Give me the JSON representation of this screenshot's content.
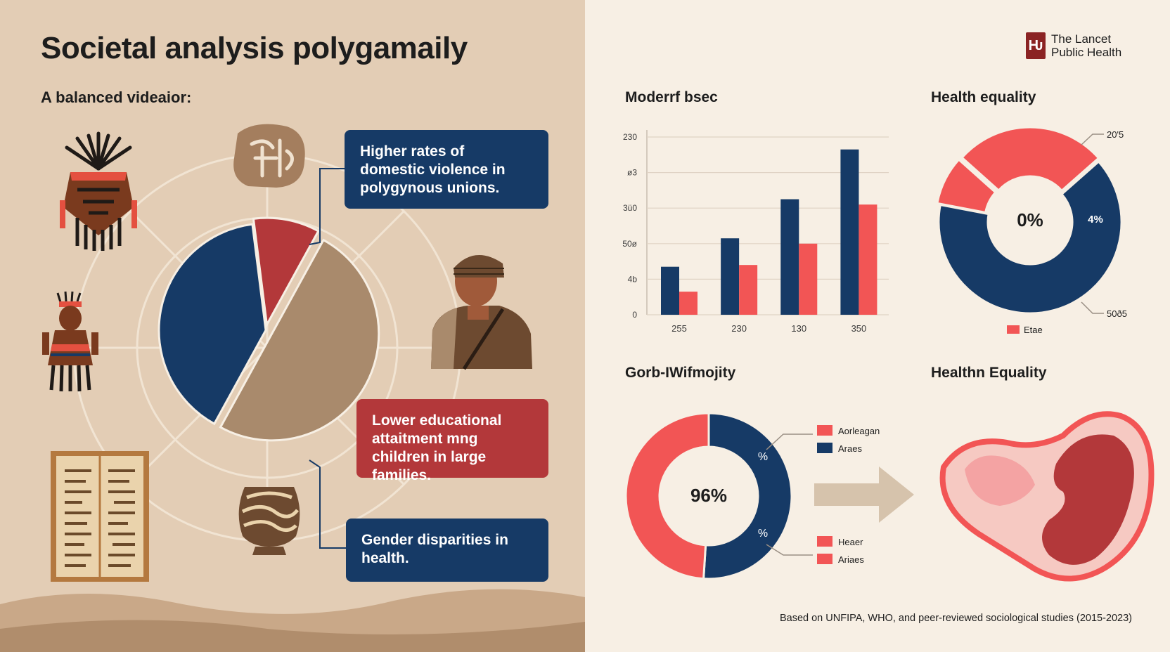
{
  "header": {
    "title": "Societal analysis polygamaily",
    "subtitle": "A balanced videaior:"
  },
  "callouts": [
    "Higher rates of domestic violence in polygynous unions.",
    "Lower educational attaitment mng children in large families.",
    "Gender disparities in health."
  ],
  "logo": {
    "mark": "Ƕ",
    "line1": "The Lancet",
    "line2": "Public Health"
  },
  "footer": "Based on UNFIPA, WHO, and peer-reviewed sociological studies (2015-2023)",
  "colors": {
    "navy": "#163a66",
    "coral": "#f25555",
    "tan": "#a98a6c",
    "crimson": "#b3383a",
    "pink": "#f4a3a3"
  },
  "icons": [
    "tribal-mask-icon",
    "carved-seal-icon",
    "figurine-icon",
    "man-portrait-icon",
    "scroll-book-icon",
    "ceramic-pot-icon",
    "heart-organ-icon",
    "arrow-right-icon"
  ],
  "chart_data": [
    {
      "type": "pie",
      "title": "",
      "slices": [
        {
          "color": "navy",
          "value": 40
        },
        {
          "color": "crimson",
          "value": 10
        },
        {
          "color": "tan",
          "value": 50
        }
      ]
    },
    {
      "type": "bar",
      "title": "Moderrf bsec",
      "categories": [
        "255",
        "230",
        "130",
        "350"
      ],
      "y_ticks": [
        "0",
        "4b",
        "50ø",
        "3ü0",
        "ø3",
        "230"
      ],
      "series": [
        {
          "color": "navy",
          "values": [
            1.35,
            2.15,
            3.25,
            4.65
          ]
        },
        {
          "color": "coral",
          "values": [
            0.65,
            1.4,
            2.0,
            3.1
          ]
        }
      ],
      "ylim": [
        0,
        5
      ]
    },
    {
      "type": "pie",
      "title": "Health equality",
      "center_label": "0%",
      "slice_label": "4%",
      "callout_labels": [
        "20'5",
        "50ð5"
      ],
      "legend": [
        "Etae"
      ],
      "slices": [
        {
          "color": "navy",
          "value": 60
        },
        {
          "color": "coral",
          "value": 8
        },
        {
          "color": "coral",
          "value": 25
        }
      ]
    },
    {
      "type": "pie",
      "title": "Gorb-IWifmojity",
      "center_label": "96%",
      "slice_labels": [
        "%",
        "%"
      ],
      "legend": [
        "Aorleagan",
        "Araes",
        "Heaer",
        "Ariaes"
      ],
      "slices": [
        {
          "color": "navy",
          "value": 51
        },
        {
          "color": "coral",
          "value": 49
        }
      ]
    },
    {
      "type": "other",
      "title": "Healthn Equality"
    }
  ]
}
